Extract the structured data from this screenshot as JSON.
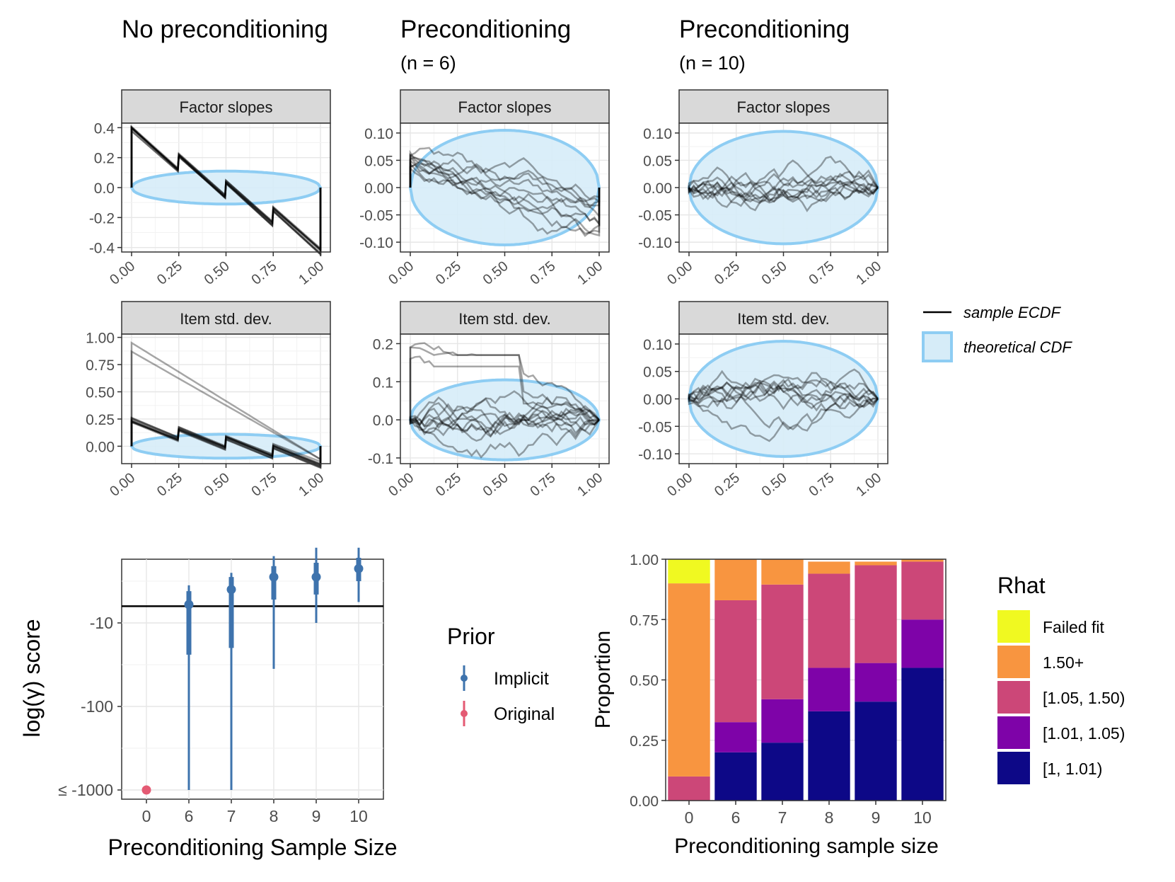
{
  "columns": [
    {
      "title": "No preconditioning",
      "subtitle": ""
    },
    {
      "title": "Preconditioning",
      "subtitle": "(n = 6)"
    },
    {
      "title": "Preconditioning",
      "subtitle": "(n = 10)"
    }
  ],
  "legend_ecdf": {
    "sample_label": "sample ECDF",
    "theoretical_label": "theoretical CDF",
    "line_color": "#000000",
    "band_fill": "#d6ecf8",
    "band_stroke": "#8ecdf3"
  },
  "chart_data": [
    {
      "id": "ecdf-r1c1",
      "type": "line",
      "title": "Factor slopes",
      "xlim": [
        0,
        1
      ],
      "ylim": [
        -0.43,
        0.43
      ],
      "xticks": [
        "0.00",
        "0.25",
        "0.50",
        "0.75",
        "1.00"
      ],
      "yticks": [
        0.4,
        0.2,
        0.0,
        -0.2,
        -0.4
      ],
      "ytick_labels": [
        "0.4",
        "0.2",
        "0.0",
        "-0.2",
        "-0.4"
      ],
      "band_halfwidth": 0.11,
      "series_pattern": "sawtooth",
      "n_series": 10,
      "start": 0.34,
      "end": -0.38,
      "jump": 0.17,
      "segments": 4
    },
    {
      "id": "ecdf-r1c2",
      "type": "line",
      "title": "Factor slopes",
      "xlim": [
        0,
        1
      ],
      "ylim": [
        -0.118,
        0.118
      ],
      "xticks": [
        "0.00",
        "0.25",
        "0.50",
        "0.75",
        "1.00"
      ],
      "yticks": [
        0.1,
        0.05,
        0.0,
        -0.05,
        -0.1
      ],
      "ytick_labels": [
        "0.10",
        "0.05",
        "0.00",
        "-0.05",
        "-0.10"
      ],
      "band_halfwidth": 0.105,
      "series_pattern": "descending-walk",
      "n_series": 10,
      "start": 0.05,
      "end": -0.05
    },
    {
      "id": "ecdf-r1c3",
      "type": "line",
      "title": "Factor slopes",
      "xlim": [
        0,
        1
      ],
      "ylim": [
        -0.118,
        0.118
      ],
      "xticks": [
        "0.00",
        "0.25",
        "0.50",
        "0.75",
        "1.00"
      ],
      "yticks": [
        0.1,
        0.05,
        0.0,
        -0.05,
        -0.1
      ],
      "ytick_labels": [
        "0.10",
        "0.05",
        "0.00",
        "-0.05",
        "-0.10"
      ],
      "band_halfwidth": 0.103,
      "series_pattern": "centered-walk",
      "n_series": 10,
      "start": 0.0,
      "end": 0.0
    },
    {
      "id": "ecdf-r2c1",
      "type": "line",
      "title": "Item std. dev.",
      "xlim": [
        0,
        1
      ],
      "ylim": [
        -0.16,
        1.03
      ],
      "xticks": [
        "0.00",
        "0.25",
        "0.50",
        "0.75",
        "1.00"
      ],
      "yticks": [
        1.0,
        0.75,
        0.5,
        0.25,
        0.0
      ],
      "ytick_labels": [
        "1.00",
        "0.75",
        "0.50",
        "0.25",
        "0.00"
      ],
      "band_halfwidth": 0.11,
      "series_pattern": "sawtooth-plus-diagonal",
      "n_series": 10,
      "start": 0.2,
      "end": -0.12,
      "jump": 0.16,
      "segments": 4,
      "diagonal_series": [
        {
          "start": 0.95,
          "end": -0.12
        },
        {
          "start": 0.87,
          "end": -0.12
        }
      ]
    },
    {
      "id": "ecdf-r2c2",
      "type": "line",
      "title": "Item std. dev.",
      "xlim": [
        0,
        1
      ],
      "ylim": [
        -0.115,
        0.225
      ],
      "xticks": [
        "0.00",
        "0.25",
        "0.50",
        "0.75",
        "1.00"
      ],
      "yticks": [
        0.2,
        0.1,
        0.0,
        -0.1
      ],
      "ytick_labels": [
        "0.2",
        "0.1",
        "0.0",
        "-0.1"
      ],
      "band_halfwidth": 0.105,
      "series_pattern": "centered-walk-plus-high",
      "n_series": 10,
      "start": 0.0,
      "end": 0.0,
      "high_series": [
        {
          "start": 0.19,
          "end": 0.0
        },
        {
          "start": 0.16,
          "end": 0.0
        },
        {
          "start": 0.19,
          "end": 0.0
        }
      ]
    },
    {
      "id": "ecdf-r2c3",
      "type": "line",
      "title": "Item std. dev.",
      "xlim": [
        0,
        1
      ],
      "ylim": [
        -0.118,
        0.118
      ],
      "xticks": [
        "0.00",
        "0.25",
        "0.50",
        "0.75",
        "1.00"
      ],
      "yticks": [
        0.1,
        0.05,
        0.0,
        -0.05,
        -0.1
      ],
      "ytick_labels": [
        "0.10",
        "0.05",
        "0.00",
        "-0.05",
        "-0.10"
      ],
      "band_halfwidth": 0.105,
      "series_pattern": "centered-walk",
      "n_series": 10,
      "start": 0.0,
      "end": 0.0
    },
    {
      "id": "score-plot",
      "type": "scatter",
      "xlabel": "Preconditioning Sample Size",
      "ylabel": "log(γ) score",
      "categories": [
        "0",
        "6",
        "7",
        "8",
        "9",
        "10"
      ],
      "ytick_labels": [
        "-10",
        "-100",
        "≤ -1000"
      ],
      "ytick_positions_decades": [
        1,
        2,
        3
      ],
      "reference_line_decades": 0.8,
      "series": [
        {
          "name": "Implicit",
          "color": "#3e73ad",
          "points": [
            {
              "x": "6",
              "y": 0.78,
              "inner": [
                0.62,
                1.38
              ],
              "outer": [
                0.55,
                3.0
              ]
            },
            {
              "x": "7",
              "y": 0.6,
              "inner": [
                0.45,
                1.3
              ],
              "outer": [
                0.4,
                3.0
              ]
            },
            {
              "x": "8",
              "y": 0.45,
              "inner": [
                0.32,
                0.72
              ],
              "outer": [
                0.2,
                1.55
              ]
            },
            {
              "x": "9",
              "y": 0.45,
              "inner": [
                0.28,
                0.66
              ],
              "outer": [
                0.1,
                1.0
              ]
            },
            {
              "x": "10",
              "y": 0.35,
              "inner": [
                0.22,
                0.5
              ],
              "outer": [
                0.1,
                0.75
              ]
            }
          ]
        },
        {
          "name": "Original",
          "color": "#e45a73",
          "points": [
            {
              "x": "0",
              "y": 3.0
            }
          ]
        }
      ],
      "legend_title": "Prior"
    },
    {
      "id": "rhat-plot",
      "type": "bar",
      "stacked": true,
      "xlabel": "Preconditioning sample size",
      "ylabel": "Proportion",
      "categories": [
        "0",
        "6",
        "7",
        "8",
        "9",
        "10"
      ],
      "ylim": [
        0,
        1
      ],
      "ytick_labels": [
        "0.00",
        "0.25",
        "0.50",
        "0.75",
        "1.00"
      ],
      "legend_title": "Rhat",
      "series": [
        {
          "name": "[1, 1.01)",
          "color": "#0d0887",
          "values": [
            0.0,
            0.2,
            0.24,
            0.37,
            0.41,
            0.55
          ]
        },
        {
          "name": "[1.01, 1.05)",
          "color": "#7e03a8",
          "values": [
            0.0,
            0.125,
            0.18,
            0.18,
            0.16,
            0.2
          ]
        },
        {
          "name": "[1.05, 1.50)",
          "color": "#cc4778",
          "values": [
            0.1,
            0.505,
            0.475,
            0.39,
            0.405,
            0.24
          ]
        },
        {
          "name": "1.50+",
          "color": "#f89540",
          "values": [
            0.8,
            0.17,
            0.105,
            0.05,
            0.015,
            0.01
          ]
        },
        {
          "name": "Failed fit",
          "color": "#f0f921",
          "values": [
            0.1,
            0.0,
            0.0,
            0.0,
            0.0,
            0.0
          ]
        }
      ]
    }
  ]
}
